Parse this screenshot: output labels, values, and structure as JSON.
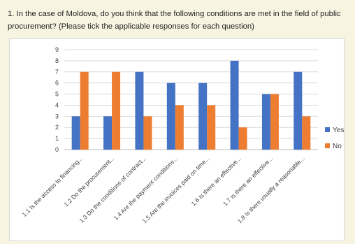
{
  "question": {
    "text": "1. In the case of Moldova, do you think that the following conditions are met in the field of public procurement? (Please tick the applicable responses for each question)"
  },
  "chart_data": {
    "type": "bar",
    "title": "",
    "xlabel": "",
    "ylabel": "",
    "ylim": [
      0,
      9
    ],
    "yticks": [
      0,
      1,
      2,
      3,
      4,
      5,
      6,
      7,
      8,
      9
    ],
    "grid": true,
    "legend_position": "right",
    "categories": [
      "1.1 Is the access to financing...",
      "1.2 Do the procurement...",
      "1.3 Do the conditions of contract...",
      "1.4 Are the payment conditions...",
      "1.5 Are the invoices paid on time...",
      "1.6 Is there an effective...",
      "1.7 Is there an effective...",
      "1.8 Is there usually a reasonable..."
    ],
    "series": [
      {
        "name": "Yes",
        "color": "#4472c4",
        "values": [
          3,
          3,
          7,
          6,
          6,
          8,
          5,
          7
        ]
      },
      {
        "name": "No",
        "color": "#ed7d31",
        "values": [
          7,
          7,
          3,
          4,
          4,
          2,
          5,
          3
        ]
      }
    ]
  }
}
